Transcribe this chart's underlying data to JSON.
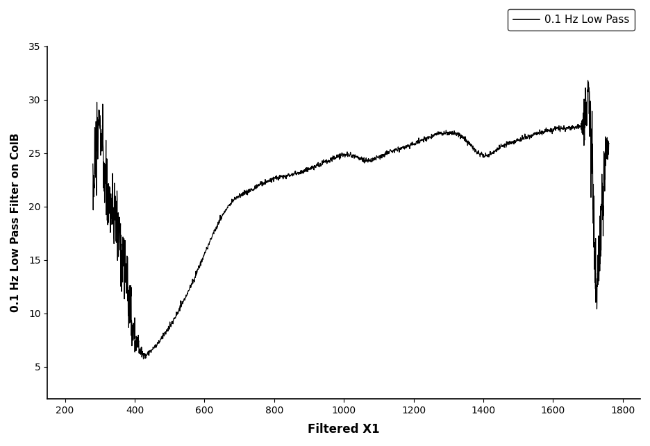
{
  "title": "",
  "xlabel": "Filtered X1",
  "ylabel": "0.1 Hz Low Pass Filter on ColB",
  "legend_label": "0.1 Hz Low Pass",
  "xlim": [
    150,
    1850
  ],
  "ylim": [
    2,
    35
  ],
  "xticks": [
    200,
    400,
    600,
    800,
    1000,
    1200,
    1400,
    1600,
    1800
  ],
  "yticks": [
    5,
    10,
    15,
    20,
    25,
    30,
    35
  ],
  "line_color": "#000000",
  "background_color": "#ffffff",
  "figsize": [
    9.37,
    6.43
  ],
  "dpi": 100
}
